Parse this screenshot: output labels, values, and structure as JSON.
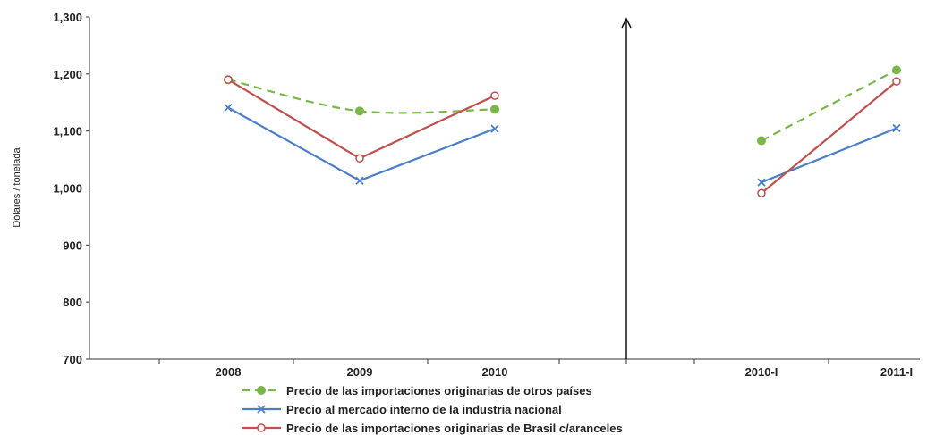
{
  "chart_data": {
    "type": "line",
    "ylabel": "Dólares / tonelada",
    "ylim": [
      700,
      1300
    ],
    "yticks": [
      700,
      800,
      900,
      1000,
      1100,
      1200,
      1300
    ],
    "ytick_labels": [
      "700",
      "800",
      "900",
      "1,000",
      "1,100",
      "1,200",
      "1,300"
    ],
    "categories": [
      "2008",
      "2009",
      "2010",
      "2010-I",
      "2011-I"
    ],
    "groups": [
      [
        0,
        1,
        2
      ],
      [
        3,
        4
      ]
    ],
    "legend_position": "bottom",
    "series": [
      {
        "name": "Precio de las importaciones originarias de otros países",
        "color": "#7ab648",
        "dash": true,
        "marker": "filled-circle",
        "values": [
          1190,
          1135,
          1138,
          1083,
          1207
        ]
      },
      {
        "name": "Precio al mercado interno de la industria nacional",
        "color": "#4a7ec9",
        "dash": false,
        "marker": "x",
        "values": [
          1141,
          1013,
          1104,
          1010,
          1105
        ]
      },
      {
        "name": "Precio de las importaciones originarias de Brasil c/aranceles",
        "color": "#c0504d",
        "dash": false,
        "marker": "open-circle",
        "values": [
          1190,
          1052,
          1162,
          991,
          1187
        ]
      }
    ]
  }
}
